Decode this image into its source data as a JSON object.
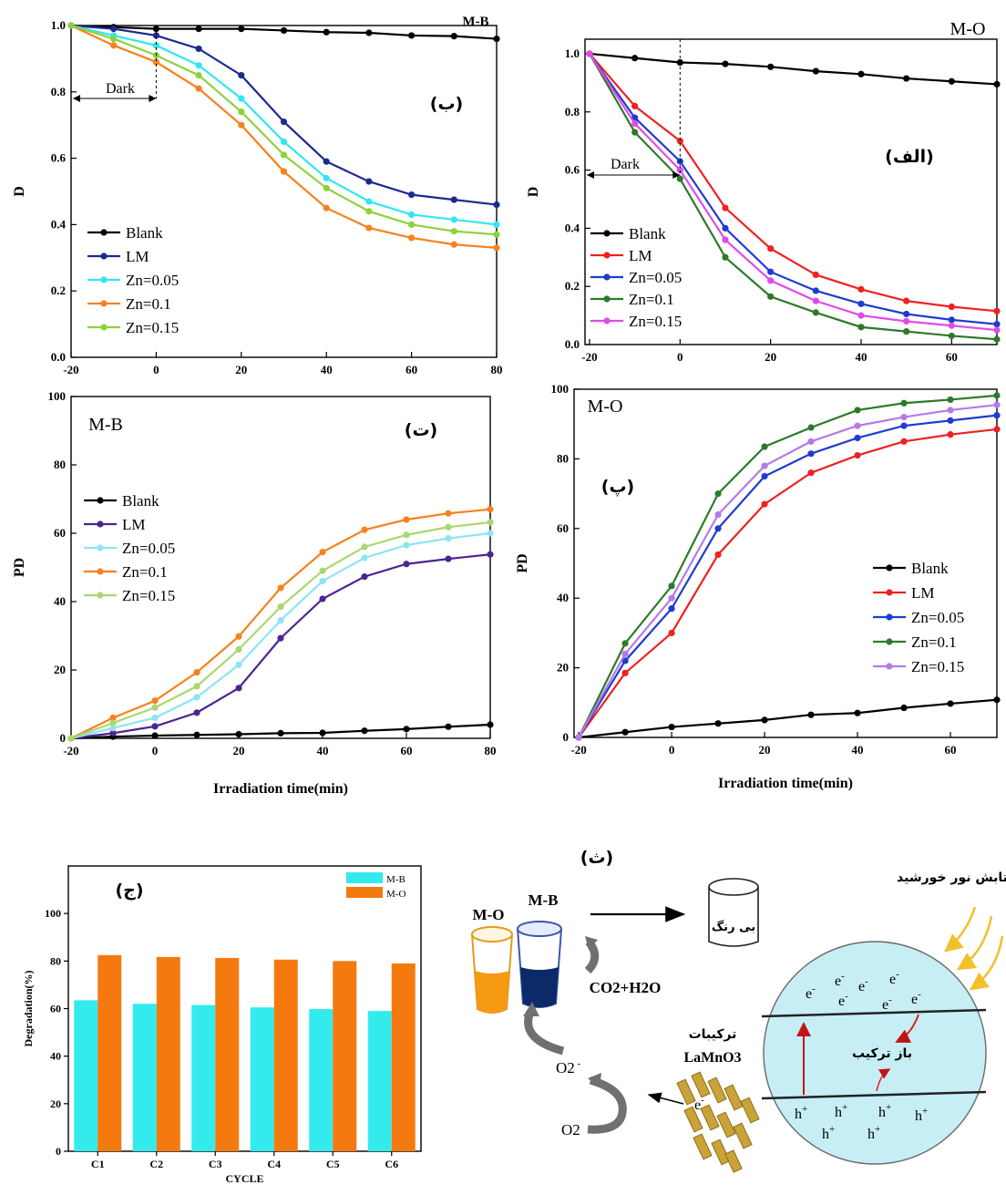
{
  "chart_data": [
    {
      "id": "p1",
      "type": "line",
      "tag": "(ب)",
      "corner_label": "M-B",
      "dark_label": "Dark",
      "ylabel": "D",
      "xlabel": "",
      "xlim": [
        -20,
        80
      ],
      "ylim": [
        0,
        1.0
      ],
      "xticks": [
        -20,
        0,
        20,
        40,
        60,
        80
      ],
      "yticks": [
        0.0,
        0.2,
        0.4,
        0.6,
        0.8,
        1.0
      ],
      "ytick_labels": [
        "0.0",
        "0.2",
        "0.4",
        "0.6",
        "0.8",
        "1.0"
      ],
      "x": [
        -20,
        -10,
        0,
        10,
        20,
        30,
        40,
        50,
        60,
        70,
        80
      ],
      "series": [
        {
          "name": "Blank",
          "color": "#000000",
          "values": [
            1.0,
            0.995,
            0.99,
            0.99,
            0.99,
            0.985,
            0.98,
            0.978,
            0.97,
            0.968,
            0.96
          ]
        },
        {
          "name": "LM",
          "color": "#1c2a8f",
          "values": [
            1.0,
            0.99,
            0.97,
            0.93,
            0.85,
            0.71,
            0.59,
            0.53,
            0.49,
            0.475,
            0.46
          ]
        },
        {
          "name": "Zn=0.05",
          "color": "#32e6f0",
          "values": [
            1.0,
            0.97,
            0.94,
            0.88,
            0.78,
            0.65,
            0.54,
            0.47,
            0.43,
            0.415,
            0.4
          ]
        },
        {
          "name": "Zn=0.1",
          "color": "#f5821f",
          "values": [
            1.0,
            0.94,
            0.89,
            0.81,
            0.7,
            0.56,
            0.45,
            0.39,
            0.36,
            0.34,
            0.33
          ]
        },
        {
          "name": "Zn=0.15",
          "color": "#8ed23b",
          "values": [
            1.0,
            0.96,
            0.91,
            0.85,
            0.74,
            0.61,
            0.51,
            0.44,
            0.4,
            0.38,
            0.37
          ]
        }
      ]
    },
    {
      "id": "p2",
      "type": "line",
      "tag": "(الف)",
      "corner_label": "M-O",
      "dark_label": "Dark",
      "ylabel": "D",
      "xlabel": "",
      "xlim": [
        -21,
        70
      ],
      "ylim": [
        0,
        1.05
      ],
      "xticks": [
        -20,
        0,
        20,
        40,
        60
      ],
      "yticks": [
        0.0,
        0.2,
        0.4,
        0.6,
        0.8,
        1.0
      ],
      "ytick_labels": [
        "0.0",
        "0.2",
        "0.4",
        "0.6",
        "0.8",
        "1.0"
      ],
      "x": [
        -20,
        -10,
        0,
        10,
        20,
        30,
        40,
        50,
        60,
        70
      ],
      "series": [
        {
          "name": "Blank",
          "color": "#000000",
          "values": [
            1.0,
            0.985,
            0.97,
            0.965,
            0.955,
            0.94,
            0.93,
            0.915,
            0.905,
            0.895
          ]
        },
        {
          "name": "LM",
          "color": "#f02020",
          "values": [
            1.0,
            0.82,
            0.7,
            0.47,
            0.33,
            0.24,
            0.19,
            0.15,
            0.13,
            0.115
          ]
        },
        {
          "name": "Zn=0.05",
          "color": "#1e3ccf",
          "values": [
            1.0,
            0.78,
            0.63,
            0.4,
            0.25,
            0.185,
            0.14,
            0.105,
            0.085,
            0.07
          ]
        },
        {
          "name": "Zn=0.1",
          "color": "#2d7a2a",
          "values": [
            1.0,
            0.73,
            0.57,
            0.3,
            0.165,
            0.11,
            0.06,
            0.045,
            0.03,
            0.018
          ]
        },
        {
          "name": "Zn=0.15",
          "color": "#e04be8",
          "values": [
            1.0,
            0.76,
            0.6,
            0.36,
            0.22,
            0.15,
            0.1,
            0.08,
            0.065,
            0.05
          ]
        }
      ]
    },
    {
      "id": "p3",
      "type": "line",
      "tag": "(ت)",
      "corner_label": "M-B",
      "ylabel": "PD",
      "xlabel": "Irradiation time(min)",
      "xlim": [
        -20,
        80
      ],
      "ylim": [
        0,
        100
      ],
      "xticks": [
        -20,
        0,
        20,
        40,
        60,
        80
      ],
      "yticks": [
        0,
        20,
        40,
        60,
        80,
        100
      ],
      "ytick_labels": [
        "0",
        "20",
        "40",
        "60",
        "80",
        "100"
      ],
      "x": [
        -20,
        -10,
        0,
        10,
        20,
        30,
        40,
        50,
        60,
        70,
        80
      ],
      "series": [
        {
          "name": "Blank",
          "color": "#000000",
          "values": [
            0,
            0.5,
            0.8,
            1.0,
            1.2,
            1.5,
            1.6,
            2.2,
            2.7,
            3.4,
            4.0
          ]
        },
        {
          "name": "LM",
          "color": "#4b2590",
          "values": [
            0,
            1.5,
            3.5,
            7.5,
            14.7,
            29.3,
            40.8,
            47.3,
            51.0,
            52.5,
            53.8
          ]
        },
        {
          "name": "Zn=0.05",
          "color": "#8ee4f3",
          "values": [
            0,
            3.0,
            6.0,
            12.0,
            21.5,
            34.5,
            46.0,
            52.8,
            56.5,
            58.5,
            60.0
          ]
        },
        {
          "name": "Zn=0.1",
          "color": "#f5821f",
          "values": [
            0,
            6.0,
            11.0,
            19.3,
            29.8,
            44.0,
            54.5,
            61.0,
            64.0,
            65.8,
            67.0
          ]
        },
        {
          "name": "Zn=0.15",
          "color": "#a9d86e",
          "values": [
            0,
            4.5,
            9.0,
            15.2,
            26.0,
            38.5,
            49.0,
            56.0,
            59.5,
            61.8,
            63.2
          ]
        }
      ]
    },
    {
      "id": "p4",
      "type": "line",
      "tag": "(پ)",
      "corner_label": "M-O",
      "ylabel": "PD",
      "xlabel": "Irradiation time(min)",
      "xlim": [
        -21,
        70
      ],
      "ylim": [
        0,
        100
      ],
      "xticks": [
        -20,
        0,
        20,
        40,
        60
      ],
      "yticks": [
        0,
        20,
        40,
        60,
        80,
        100
      ],
      "ytick_labels": [
        "0",
        "20",
        "40",
        "60",
        "80",
        "100"
      ],
      "x": [
        -20,
        -10,
        0,
        10,
        20,
        30,
        40,
        50,
        60,
        70
      ],
      "series": [
        {
          "name": "Blank",
          "color": "#000000",
          "values": [
            0,
            1.5,
            3.0,
            4.0,
            5.0,
            6.5,
            7.0,
            8.5,
            9.7,
            10.8
          ]
        },
        {
          "name": "LM",
          "color": "#f02020",
          "values": [
            0,
            18.5,
            30.0,
            52.5,
            67.0,
            76.0,
            81.0,
            85.0,
            87.0,
            88.5
          ]
        },
        {
          "name": "Zn=0.05",
          "color": "#1e3ccf",
          "values": [
            0,
            22.0,
            37.0,
            60.0,
            75.0,
            81.5,
            86.0,
            89.5,
            91.0,
            92.5
          ]
        },
        {
          "name": "Zn=0.1",
          "color": "#2d7a2a",
          "values": [
            0,
            27.0,
            43.5,
            70.0,
            83.5,
            89.0,
            94.0,
            96.0,
            97.0,
            98.2
          ]
        },
        {
          "name": "Zn=0.15",
          "color": "#b57ae8",
          "values": [
            0,
            24.0,
            40.0,
            64.0,
            78.0,
            85.0,
            89.5,
            92.0,
            94.0,
            95.5
          ]
        }
      ]
    },
    {
      "id": "p5",
      "type": "bar",
      "tag": "(ج)",
      "ylabel": "Degradation(%)",
      "xlabel": "CYCLE",
      "ylim": [
        0,
        120
      ],
      "yticks": [
        0,
        20,
        40,
        60,
        80,
        100
      ],
      "categories": [
        "C1",
        "C2",
        "C3",
        "C4",
        "C5",
        "C6"
      ],
      "series": [
        {
          "name": "M-B",
          "color": "#33ebed",
          "values": [
            63.5,
            62.0,
            61.5,
            60.5,
            59.8,
            59.0
          ]
        },
        {
          "name": "M-O",
          "color": "#f47a10",
          "values": [
            82.5,
            81.7,
            81.3,
            80.6,
            80.0,
            79.0
          ]
        }
      ]
    }
  ],
  "scheme": {
    "tag": "(ث)",
    "mo_label": "M-O",
    "mb_label": "M-B",
    "colorless_label": "بی رنگ",
    "products_label": "CO2+H2O",
    "sunlight_label": "تابش نور خورشید",
    "compounds_label": "ترکیبات",
    "catalyst_label": "LaMnO3",
    "recombination_label": "باز ترکیب",
    "electron": "e",
    "hole": "h",
    "o2minus": "O2",
    "o2": "O2"
  }
}
